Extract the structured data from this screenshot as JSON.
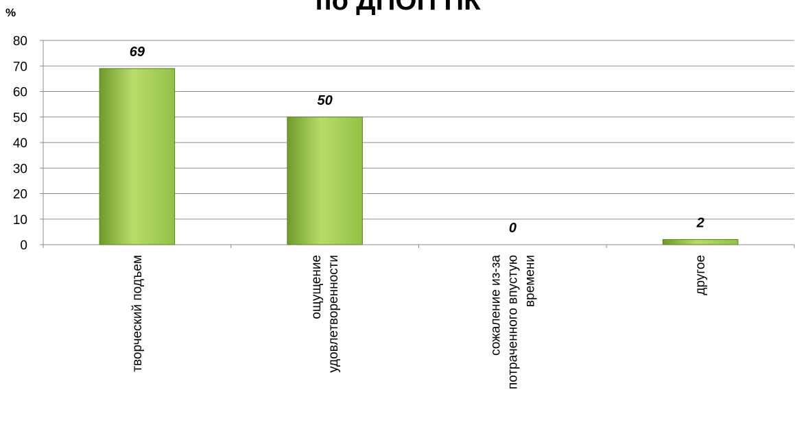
{
  "chart_data": {
    "type": "bar",
    "title": "по ДПОП ПК",
    "ylabel": "%",
    "ylim": [
      0,
      80
    ],
    "yticks": [
      0,
      10,
      20,
      30,
      40,
      50,
      60,
      70,
      80
    ],
    "grid": true,
    "categories": [
      [
        "творческий подъем"
      ],
      [
        "ощущение",
        "удовлетворенности"
      ],
      [
        "сожаление из-за",
        "потраченного впустую",
        "времени"
      ],
      [
        "другое"
      ]
    ],
    "values": [
      69,
      50,
      0,
      2
    ],
    "data_labels": [
      "69",
      "50",
      "0",
      "2"
    ],
    "colors": {
      "bar_light": "#b8dc6a",
      "bar_mid": "#92c145",
      "bar_dark": "#6f9a2c",
      "bar_edge": "#5a7f1e",
      "grid": "#8c8c8c",
      "axis": "#8c8c8c"
    }
  }
}
